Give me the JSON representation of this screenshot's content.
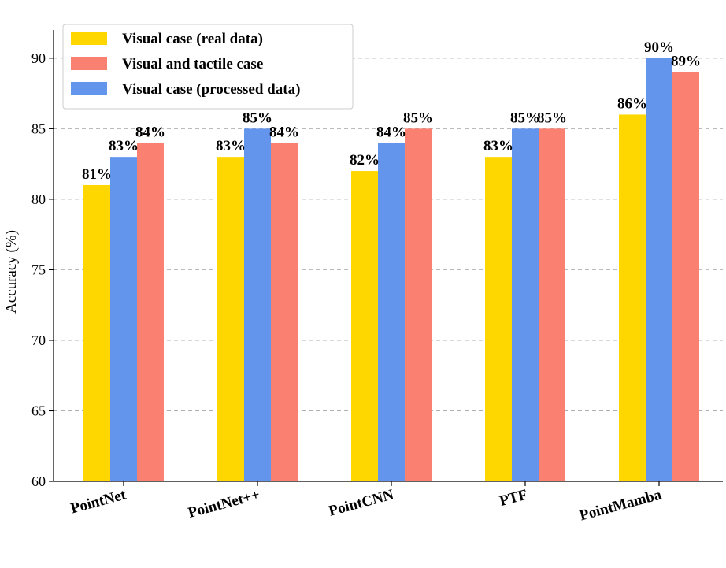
{
  "chart_data": {
    "type": "bar",
    "categories": [
      "PointNet",
      "PointNet++",
      "PointCNN",
      "PTF",
      "PointMamba"
    ],
    "series": [
      {
        "name": "Visual case (real data)",
        "values": [
          81,
          83,
          82,
          83,
          86
        ],
        "labels": [
          "81%",
          "83%",
          "82%",
          "83%",
          "86%"
        ],
        "color": "#FFD700"
      },
      {
        "name": "Visual case (processed data)",
        "values": [
          83,
          85,
          84,
          85,
          90
        ],
        "labels": [
          "83%",
          "85%",
          "84%",
          "85%",
          "90%"
        ],
        "color": "#6495ED"
      },
      {
        "name": "Visual and tactile case",
        "values": [
          84,
          84,
          85,
          85,
          89
        ],
        "labels": [
          "84%",
          "84%",
          "85%",
          "85%",
          "89%"
        ],
        "color": "#FA8072"
      }
    ],
    "legend_order": [
      0,
      2,
      1
    ],
    "legend_position": "top-left",
    "xlabel": "",
    "ylabel": "Accuracy (%)",
    "ylim": [
      60,
      92
    ],
    "yticks": [
      60,
      65,
      70,
      75,
      80,
      85,
      90
    ],
    "grid": "horizontal-dashed"
  }
}
